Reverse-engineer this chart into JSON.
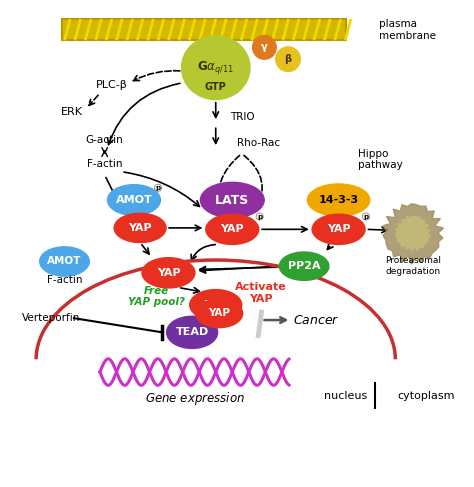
{
  "figsize": [
    4.74,
    4.87
  ],
  "dpi": 100,
  "bg_color": "#ffffff",
  "membrane_color": "#c8b400",
  "galpha_color": "#b5c832",
  "gamma_color": "#e07820",
  "beta_color": "#e8c020",
  "amot_color": "#4da6e8",
  "lats_color": "#9030a0",
  "yap_color": "#e83020",
  "complex1433_color": "#f0a800",
  "pp2a_color": "#30a030",
  "proteasome_color": "#a09060",
  "tead_color": "#7030a0",
  "nucleus_border_color": "#c83030",
  "dna_color": "#cc30cc",
  "free_yap_color": "#20a020",
  "activate_yap_color": "#e83020",
  "plcb_label": "PLC-β",
  "erk_label": "ERK",
  "gtp_label": "GTP",
  "plasma_membrane_label": "plasma\nmembrane",
  "trio_label": "TRIO",
  "rhorac_label": "Rho-Rac",
  "gactin_label": "G-actin",
  "factin_label": "F-actin",
  "hippo_label": "Hippo\npathway",
  "free_yap_label": "Free\nYAP pool?",
  "activate_yap_label": "Activate\nYAP",
  "verteporfin_label": "Verteporfin",
  "cancer_label": "Cancer",
  "gene_expr_label": "Gene expression",
  "nucleus_label": "nucleus",
  "cytoplasm_label": "cytoplasm"
}
